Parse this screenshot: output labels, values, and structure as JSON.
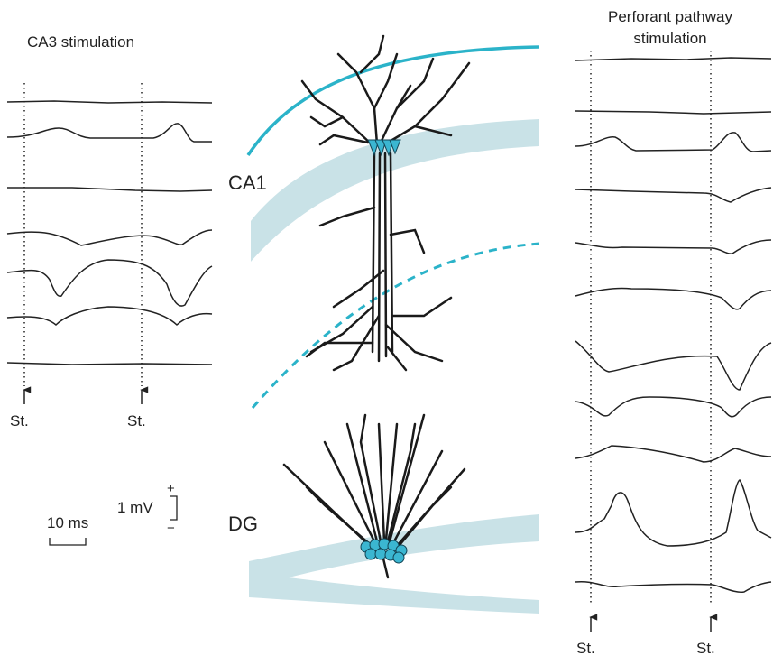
{
  "left": {
    "title": "CA3 stimulation",
    "stim_labels": [
      "St.",
      "St."
    ]
  },
  "center": {
    "regions": [
      "CA1",
      "DG"
    ]
  },
  "right": {
    "title": [
      "Perforant pathway",
      "stimulation"
    ],
    "stim_labels": [
      "St.",
      "St."
    ]
  },
  "scale": {
    "time": "10 ms",
    "voltage": "1 mV",
    "plus": "+",
    "minus": "−"
  }
}
